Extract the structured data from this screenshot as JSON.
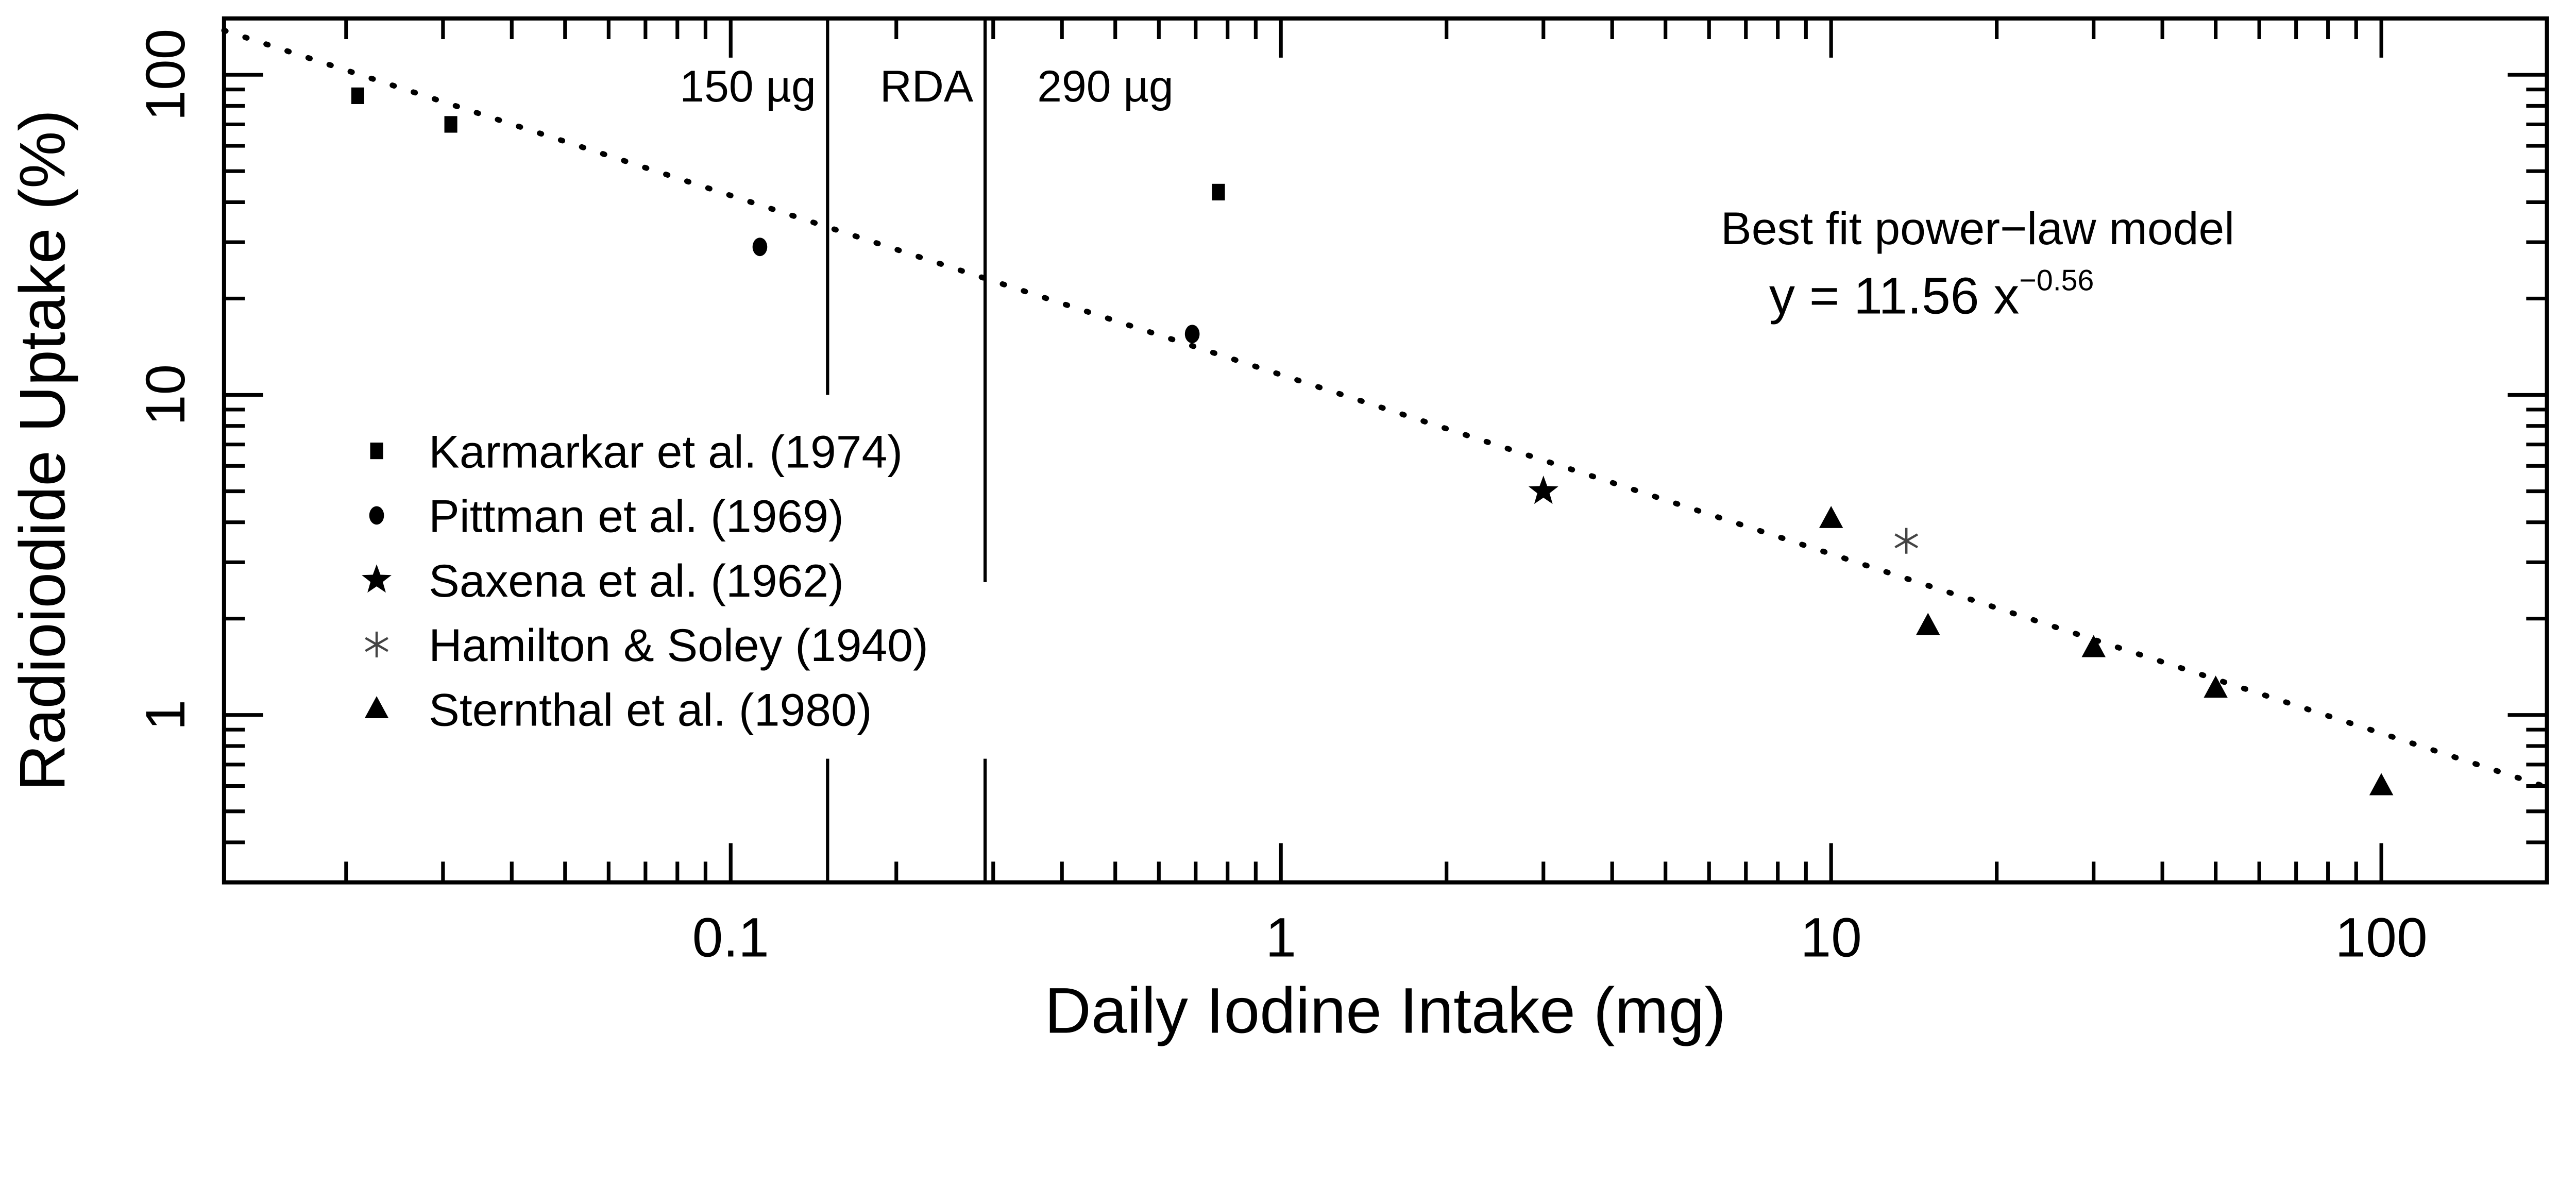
{
  "chart_data": {
    "type": "scatter",
    "title": "",
    "xlabel": "Daily Iodine Intake (mg)",
    "ylabel": "Radioiodide Uptake (%)",
    "xscale": "log",
    "yscale": "log",
    "xlim": [
      0.012,
      200
    ],
    "ylim": [
      0.3,
      150
    ],
    "x_ticks": [
      0.1,
      1,
      10,
      100
    ],
    "x_tick_labels": [
      "0.1",
      "1",
      "10",
      "100"
    ],
    "y_ticks": [
      1,
      10,
      100
    ],
    "y_tick_labels": [
      "1",
      "10",
      "100"
    ],
    "grid": false,
    "legend_position": "center-left",
    "series": [
      {
        "name": "Karmarkar et al. (1974)",
        "marker": "square",
        "color": "#000000",
        "points": [
          [
            0.021,
            86
          ],
          [
            0.031,
            70
          ],
          [
            0.77,
            43
          ]
        ]
      },
      {
        "name": "Pittman et al. (1969)",
        "marker": "circle",
        "color": "#000000",
        "points": [
          [
            0.113,
            29
          ],
          [
            0.69,
            15.5
          ]
        ]
      },
      {
        "name": "Saxena et al. (1962)",
        "marker": "star",
        "color": "#000000",
        "points": [
          [
            3.0,
            5.0
          ]
        ]
      },
      {
        "name": "Hamilton & Soley (1940)",
        "marker": "asterisk",
        "color": "#444444",
        "points": [
          [
            13.7,
            3.5
          ]
        ]
      },
      {
        "name": "Sternthal et al. (1980)",
        "marker": "triangle",
        "color": "#000000",
        "points": [
          [
            10,
            4.1
          ],
          [
            15,
            1.9
          ],
          [
            30,
            1.62
          ],
          [
            50,
            1.21
          ],
          [
            100,
            0.6
          ]
        ]
      }
    ],
    "fit": {
      "label": "Best fit power−law model",
      "equation_prefix": "y = 11.56 x",
      "equation_exponent": "−0.56",
      "a": 11.56,
      "b": -0.56,
      "style": "dotted"
    },
    "reference_lines": [
      {
        "x": 0.15,
        "label": "150 µg"
      },
      {
        "x": 0.29,
        "label": "290 µg"
      }
    ],
    "reference_band_label": "RDA"
  }
}
